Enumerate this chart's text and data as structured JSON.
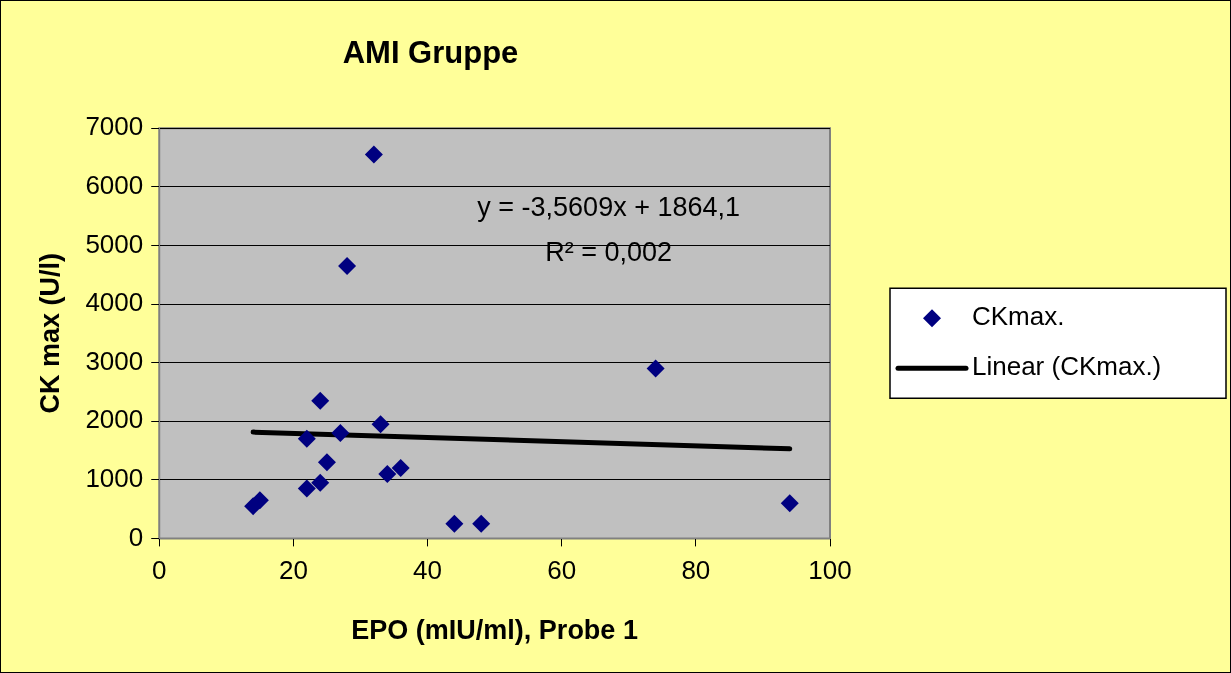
{
  "chart_data": {
    "type": "scatter",
    "title": "AMI Gruppe",
    "xlabel": "EPO (mIU/ml), Probe 1",
    "ylabel": "CK max (U/l)",
    "xlim": [
      0,
      100
    ],
    "xticks": [
      0,
      20,
      40,
      60,
      80,
      100
    ],
    "ylim": [
      0,
      7000
    ],
    "yticks": [
      0,
      1000,
      2000,
      3000,
      4000,
      5000,
      6000,
      7000
    ],
    "grid": "y",
    "legend": "right",
    "marker": "diamond",
    "annotations": [
      "y = -3,5609x + 1864,1",
      "R² = 0,002"
    ],
    "series": [
      {
        "name": "CKmax.",
        "color": "#000080",
        "x": [
          14,
          15,
          22,
          22,
          24,
          24,
          25,
          27,
          28,
          32,
          33,
          34,
          36,
          44,
          48,
          74,
          94
        ],
        "values": [
          550,
          650,
          850,
          1700,
          950,
          2350,
          1300,
          1800,
          4650,
          6550,
          1950,
          1100,
          1200,
          250,
          250,
          2900,
          600
        ]
      },
      {
        "name": "Linear (CKmax.)",
        "type": "line",
        "color": "#000000",
        "marker": "none",
        "x": [
          14,
          94
        ],
        "values": [
          1814,
          1529
        ]
      }
    ]
  }
}
